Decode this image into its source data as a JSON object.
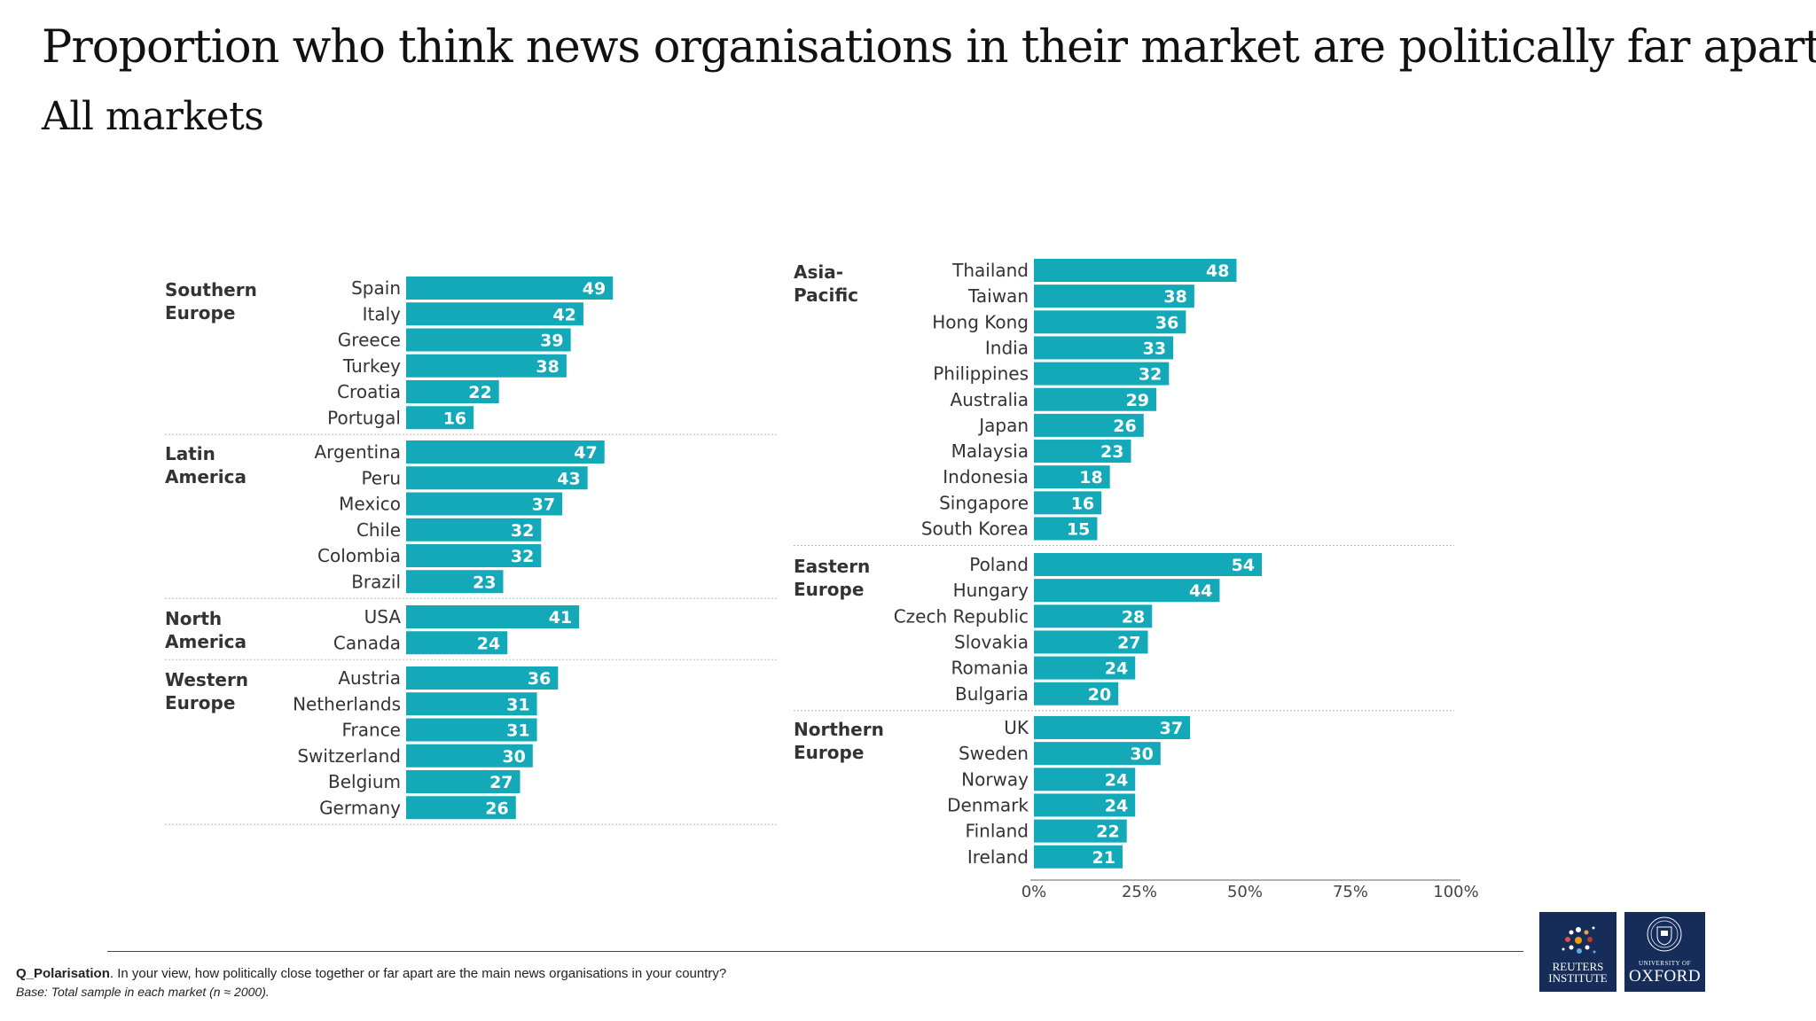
{
  "title": "Proportion who think news organisations in their market are politically far apart",
  "subtitle": "All markets",
  "colors": {
    "bar": "#14a9b8",
    "bar_label": "#ffffff",
    "logo_bg": "#162d5a"
  },
  "chart_data": {
    "type": "bar",
    "orientation": "horizontal",
    "unit": "%",
    "xlim": [
      0,
      100
    ],
    "xticks": [
      "0%",
      "25%",
      "50%",
      "75%",
      "100%"
    ],
    "panels": [
      {
        "groups": [
          {
            "name": "Southern Europe",
            "categories": [
              "Spain",
              "Italy",
              "Greece",
              "Turkey",
              "Croatia",
              "Portugal"
            ],
            "values": [
              49,
              42,
              39,
              38,
              22,
              16
            ]
          },
          {
            "name": "Latin America",
            "categories": [
              "Argentina",
              "Peru",
              "Mexico",
              "Chile",
              "Colombia",
              "Brazil"
            ],
            "values": [
              47,
              43,
              37,
              32,
              32,
              23
            ]
          },
          {
            "name": "North America",
            "categories": [
              "USA",
              "Canada"
            ],
            "values": [
              41,
              24
            ]
          },
          {
            "name": "Western Europe",
            "categories": [
              "Austria",
              "Netherlands",
              "France",
              "Switzerland",
              "Belgium",
              "Germany"
            ],
            "values": [
              36,
              31,
              31,
              30,
              27,
              26
            ]
          }
        ]
      },
      {
        "groups": [
          {
            "name": "Asia-Pacific",
            "categories": [
              "Thailand",
              "Taiwan",
              "Hong Kong",
              "India",
              "Philippines",
              "Australia",
              "Japan",
              "Malaysia",
              "Indonesia",
              "Singapore",
              "South Korea"
            ],
            "values": [
              48,
              38,
              36,
              33,
              32,
              29,
              26,
              23,
              18,
              16,
              15
            ]
          },
          {
            "name": "Eastern Europe",
            "categories": [
              "Poland",
              "Hungary",
              "Czech Republic",
              "Slovakia",
              "Romania",
              "Bulgaria"
            ],
            "values": [
              54,
              44,
              28,
              27,
              24,
              20
            ]
          },
          {
            "name": "Northern Europe",
            "categories": [
              "UK",
              "Sweden",
              "Norway",
              "Denmark",
              "Finland",
              "Ireland"
            ],
            "values": [
              37,
              30,
              24,
              24,
              22,
              21
            ]
          }
        ]
      }
    ]
  },
  "footnote": {
    "question_code": "Q_Polarisation",
    "question_text": ". In your view, how politically close together or far apart are the main news organisations in your country?",
    "base": "Base: Total sample in each market (n ≈ 2000)."
  },
  "logos": {
    "reuters": [
      "REUTERS",
      "INSTITUTE"
    ],
    "oxford_small": "UNIVERSITY OF",
    "oxford_big": "OXFORD"
  }
}
